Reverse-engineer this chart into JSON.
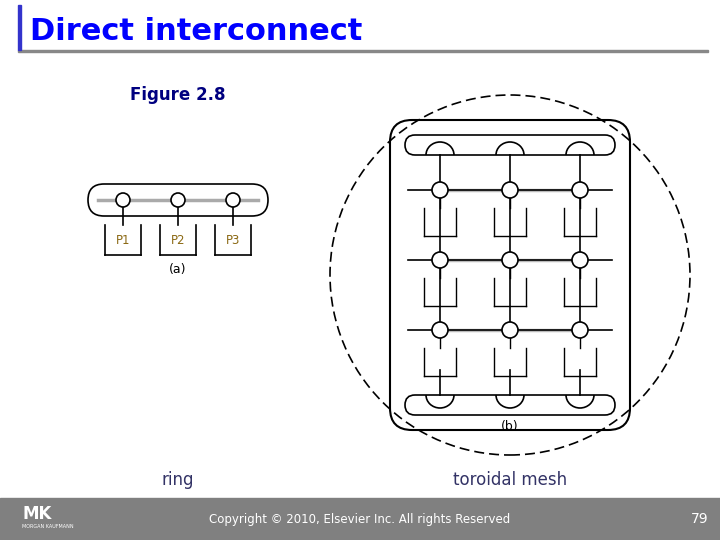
{
  "title": "Direct interconnect",
  "title_color": "#0000FF",
  "title_fontsize": 22,
  "fig_width": 7.2,
  "fig_height": 5.4,
  "background_color": "#FFFFFF",
  "footer_bg_color": "#808080",
  "footer_text": "Copyright © 2010, Elsevier Inc. All rights Reserved",
  "footer_page": "79",
  "label_a": "(a)",
  "label_b": "(b)",
  "caption_ring": "ring",
  "caption_toroidal": "toroidal mesh",
  "figure_label": "Figure 2.8",
  "figure_label_color": "#000080"
}
